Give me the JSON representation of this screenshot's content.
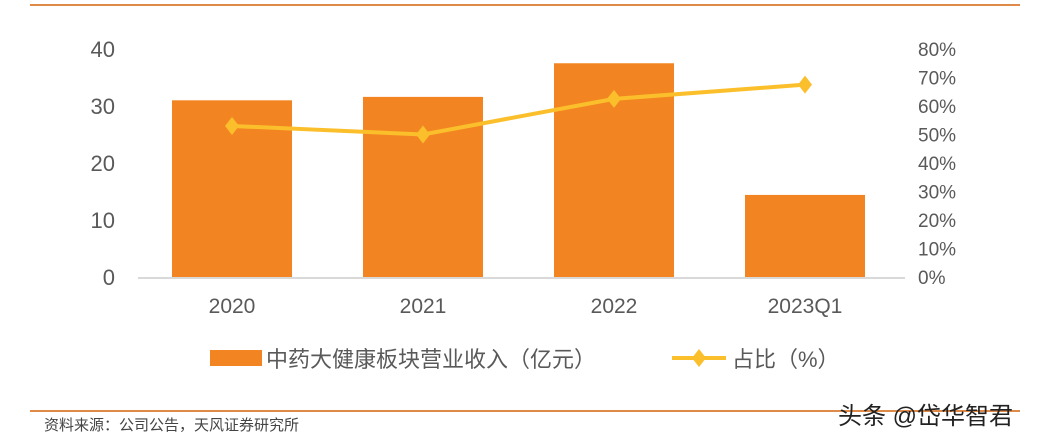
{
  "chart_data": {
    "type": "bar+line",
    "categories": [
      "2020",
      "2021",
      "2022",
      "2023Q1"
    ],
    "series": [
      {
        "name": "中药大健康板块营业收入（亿元）",
        "type": "bar",
        "axis": "left",
        "values": [
          31.0,
          31.6,
          37.5,
          14.4
        ],
        "color": "#F28522"
      },
      {
        "name": "占比（%）",
        "type": "line",
        "axis": "right",
        "values": [
          53,
          50,
          62.5,
          67.5
        ],
        "color": "#FBBF2B",
        "marker": "diamond"
      }
    ],
    "left_axis": {
      "ylim": [
        0,
        40
      ],
      "ticks": [
        "0",
        "10",
        "20",
        "30",
        "40"
      ]
    },
    "right_axis": {
      "ylim": [
        0,
        80
      ],
      "ticks": [
        "0%",
        "10%",
        "20%",
        "30%",
        "40%",
        "50%",
        "60%",
        "70%",
        "80%"
      ]
    },
    "legend": "bottom",
    "grid": false
  },
  "footer": {
    "source": "资料来源：公司公告，天风证券研究所",
    "watermark": "头条 @岱华智君"
  },
  "colors": {
    "rule": "#E08A4A",
    "axis": "#D9D9D9",
    "text": "#595959"
  }
}
